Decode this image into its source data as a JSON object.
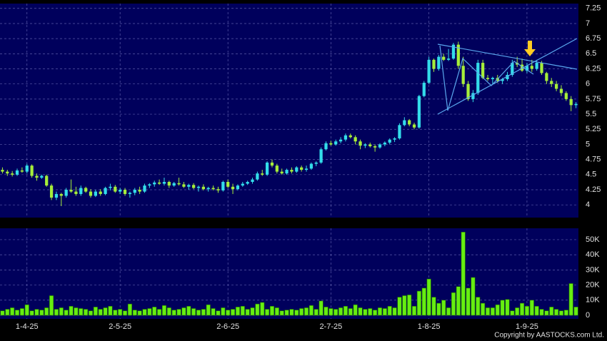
{
  "chart_data": [
    {
      "type": "candlestick",
      "up_color": "#33dcea",
      "down_color": "#a6ee3a",
      "grid": true,
      "xlim": [
        -0.5,
        117.5
      ],
      "xticks": [
        {
          "value": 5,
          "label": "1-4-25"
        },
        {
          "value": 24,
          "label": "2-5-25"
        },
        {
          "value": 46,
          "label": "2-6-25"
        },
        {
          "value": 67,
          "label": "2-7-25"
        },
        {
          "value": 87,
          "label": "1-8-25"
        },
        {
          "value": 107,
          "label": "1-9-25"
        }
      ],
      "ylim": [
        3.79,
        7.33
      ],
      "yticks": [
        4,
        4.25,
        4.5,
        4.75,
        5,
        5.25,
        5.5,
        5.75,
        6,
        6.25,
        6.5,
        6.75,
        7,
        7.25
      ],
      "ohlc": [
        [
          4.58,
          4.62,
          4.52,
          4.55
        ],
        [
          4.55,
          4.58,
          4.48,
          4.52
        ],
        [
          4.52,
          4.56,
          4.47,
          4.5
        ],
        [
          4.5,
          4.6,
          4.48,
          4.57
        ],
        [
          4.57,
          4.62,
          4.53,
          4.55
        ],
        [
          4.55,
          4.68,
          4.52,
          4.65
        ],
        [
          4.65,
          4.67,
          4.45,
          4.48
        ],
        [
          4.48,
          4.52,
          4.4,
          4.45
        ],
        [
          4.45,
          4.5,
          4.43,
          4.48
        ],
        [
          4.48,
          4.5,
          4.3,
          4.32
        ],
        [
          4.32,
          4.35,
          4.08,
          4.12
        ],
        [
          4.12,
          4.22,
          4.08,
          4.18
        ],
        [
          4.18,
          4.2,
          3.98,
          4.15
        ],
        [
          4.15,
          4.28,
          4.12,
          4.25
        ],
        [
          4.25,
          4.42,
          4.2,
          4.22
        ],
        [
          4.22,
          4.3,
          4.15,
          4.18
        ],
        [
          4.18,
          4.32,
          4.15,
          4.28
        ],
        [
          4.28,
          4.3,
          4.2,
          4.22
        ],
        [
          4.22,
          4.26,
          4.12,
          4.15
        ],
        [
          4.15,
          4.25,
          4.13,
          4.22
        ],
        [
          4.22,
          4.26,
          4.15,
          4.18
        ],
        [
          4.18,
          4.3,
          4.16,
          4.28
        ],
        [
          4.28,
          4.35,
          4.24,
          4.3
        ],
        [
          4.3,
          4.33,
          4.2,
          4.22
        ],
        [
          4.22,
          4.28,
          4.18,
          4.25
        ],
        [
          4.25,
          4.28,
          4.15,
          4.18
        ],
        [
          4.18,
          4.22,
          4.12,
          4.2
        ],
        [
          4.2,
          4.28,
          4.16,
          4.25
        ],
        [
          4.25,
          4.3,
          4.18,
          4.22
        ],
        [
          4.22,
          4.35,
          4.2,
          4.32
        ],
        [
          4.32,
          4.36,
          4.28,
          4.34
        ],
        [
          4.34,
          4.4,
          4.3,
          4.37
        ],
        [
          4.37,
          4.42,
          4.33,
          4.35
        ],
        [
          4.35,
          4.45,
          4.32,
          4.38
        ],
        [
          4.38,
          4.4,
          4.28,
          4.32
        ],
        [
          4.32,
          4.38,
          4.3,
          4.36
        ],
        [
          4.36,
          4.45,
          4.32,
          4.34
        ],
        [
          4.34,
          4.38,
          4.28,
          4.3
        ],
        [
          4.3,
          4.35,
          4.25,
          4.33
        ],
        [
          4.33,
          4.36,
          4.26,
          4.28
        ],
        [
          4.28,
          4.32,
          4.22,
          4.3
        ],
        [
          4.3,
          4.34,
          4.24,
          4.26
        ],
        [
          4.26,
          4.3,
          4.22,
          4.28
        ],
        [
          4.28,
          4.32,
          4.24,
          4.26
        ],
        [
          4.26,
          4.3,
          4.2,
          4.24
        ],
        [
          4.24,
          4.4,
          4.22,
          4.38
        ],
        [
          4.38,
          4.42,
          4.28,
          4.3
        ],
        [
          4.3,
          4.35,
          4.18,
          4.26
        ],
        [
          4.26,
          4.34,
          4.24,
          4.32
        ],
        [
          4.32,
          4.38,
          4.3,
          4.35
        ],
        [
          4.35,
          4.4,
          4.33,
          4.38
        ],
        [
          4.38,
          4.45,
          4.35,
          4.42
        ],
        [
          4.42,
          4.55,
          4.4,
          4.52
        ],
        [
          4.52,
          4.58,
          4.48,
          4.5
        ],
        [
          4.5,
          4.72,
          4.48,
          4.7
        ],
        [
          4.7,
          4.75,
          4.62,
          4.65
        ],
        [
          4.65,
          4.68,
          4.52,
          4.55
        ],
        [
          4.55,
          4.6,
          4.5,
          4.52
        ],
        [
          4.52,
          4.6,
          4.5,
          4.58
        ],
        [
          4.58,
          4.62,
          4.52,
          4.55
        ],
        [
          4.55,
          4.64,
          4.53,
          4.62
        ],
        [
          4.62,
          4.65,
          4.55,
          4.58
        ],
        [
          4.58,
          4.65,
          4.55,
          4.6
        ],
        [
          4.6,
          4.7,
          4.58,
          4.68
        ],
        [
          4.68,
          4.72,
          4.64,
          4.7
        ],
        [
          4.7,
          4.95,
          4.68,
          4.92
        ],
        [
          4.92,
          5.05,
          4.9,
          5.02
        ],
        [
          5.02,
          5.06,
          4.98,
          5.0
        ],
        [
          5.0,
          5.08,
          4.98,
          5.05
        ],
        [
          5.05,
          5.12,
          5.02,
          5.08
        ],
        [
          5.08,
          5.18,
          5.05,
          5.15
        ],
        [
          5.15,
          5.18,
          5.1,
          5.12
        ],
        [
          5.12,
          5.15,
          5.0,
          5.05
        ],
        [
          5.05,
          5.08,
          4.92,
          4.98
        ],
        [
          4.98,
          5.02,
          4.94,
          5.0
        ],
        [
          5.0,
          5.03,
          4.95,
          4.97
        ],
        [
          4.97,
          5.0,
          4.88,
          4.95
        ],
        [
          4.95,
          5.02,
          4.93,
          5.0
        ],
        [
          5.0,
          5.05,
          4.97,
          5.03
        ],
        [
          5.03,
          5.1,
          5.0,
          5.08
        ],
        [
          5.08,
          5.12,
          5.04,
          5.1
        ],
        [
          5.1,
          5.35,
          5.08,
          5.32
        ],
        [
          5.32,
          5.45,
          5.3,
          5.4
        ],
        [
          5.4,
          5.42,
          5.3,
          5.33
        ],
        [
          5.33,
          5.36,
          5.25,
          5.28
        ],
        [
          5.28,
          5.82,
          5.26,
          5.8
        ],
        [
          5.8,
          6.05,
          5.78,
          6.02
        ],
        [
          6.02,
          6.45,
          6.0,
          6.4
        ],
        [
          6.4,
          6.42,
          6.2,
          6.25
        ],
        [
          6.25,
          6.48,
          6.22,
          6.45
        ],
        [
          6.45,
          6.5,
          6.38,
          6.4
        ],
        [
          6.4,
          6.58,
          6.38,
          6.42
        ],
        [
          6.42,
          6.68,
          6.4,
          6.65
        ],
        [
          6.65,
          6.7,
          6.25,
          6.3
        ],
        [
          6.3,
          6.45,
          5.95,
          6.0
        ],
        [
          6.0,
          6.05,
          5.72,
          5.75
        ],
        [
          5.75,
          5.9,
          5.7,
          5.85
        ],
        [
          5.85,
          6.4,
          5.82,
          6.35
        ],
        [
          6.35,
          6.4,
          6.08,
          6.1
        ],
        [
          6.1,
          6.15,
          6.05,
          6.08
        ],
        [
          6.08,
          6.12,
          6.0,
          6.1
        ],
        [
          6.1,
          6.15,
          6.02,
          6.05
        ],
        [
          6.05,
          6.1,
          6.0,
          6.08
        ],
        [
          6.08,
          6.2,
          6.05,
          6.15
        ],
        [
          6.15,
          6.4,
          6.12,
          6.35
        ],
        [
          6.35,
          6.45,
          6.28,
          6.32
        ],
        [
          6.32,
          6.42,
          6.2,
          6.22
        ],
        [
          6.22,
          6.35,
          6.18,
          6.3
        ],
        [
          6.3,
          6.4,
          6.2,
          6.25
        ],
        [
          6.25,
          6.4,
          6.22,
          6.35
        ],
        [
          6.35,
          6.38,
          6.15,
          6.18
        ],
        [
          6.18,
          6.2,
          6.0,
          6.05
        ],
        [
          6.05,
          6.1,
          5.95,
          6.0
        ],
        [
          6.0,
          6.05,
          5.88,
          5.92
        ],
        [
          5.92,
          5.98,
          5.8,
          5.85
        ],
        [
          5.85,
          5.88,
          5.72,
          5.75
        ],
        [
          5.75,
          5.8,
          5.55,
          5.65
        ],
        [
          5.65,
          5.7,
          5.6,
          5.67
        ]
      ]
    },
    {
      "type": "bar",
      "color": "#66ee11",
      "grid": true,
      "xlim": [
        -0.5,
        117.5
      ],
      "xticks": [
        {
          "value": 5,
          "label": "1-4-25"
        },
        {
          "value": 24,
          "label": "2-5-25"
        },
        {
          "value": 46,
          "label": "2-6-25"
        },
        {
          "value": 67,
          "label": "2-7-25"
        },
        {
          "value": 87,
          "label": "1-8-25"
        },
        {
          "value": 107,
          "label": "1-9-25"
        }
      ],
      "ylim": [
        0,
        57500
      ],
      "yticks": [
        0,
        {
          "value": 10000,
          "label": "10K"
        },
        {
          "value": 20000,
          "label": "20K"
        },
        {
          "value": 30000,
          "label": "30K"
        },
        {
          "value": 40000,
          "label": "40K"
        },
        {
          "value": 50000,
          "label": "50K"
        }
      ],
      "values": [
        3000,
        4000,
        5000,
        3500,
        4500,
        7000,
        3000,
        4000,
        3500,
        5000,
        13000,
        4000,
        5000,
        3500,
        6000,
        5000,
        4500,
        4000,
        3000,
        5500,
        4000,
        5000,
        6000,
        3500,
        4000,
        3000,
        7500,
        3500,
        3000,
        4000,
        4500,
        5500,
        4000,
        6500,
        5000,
        3500,
        4000,
        5000,
        6000,
        4500,
        3500,
        4000,
        7000,
        4500,
        3000,
        5000,
        3500,
        4000,
        5500,
        6000,
        4000,
        5000,
        7500,
        8500,
        4000,
        6000,
        5000,
        3000,
        3500,
        4000,
        3500,
        4500,
        5000,
        6500,
        4000,
        9500,
        5500,
        4500,
        4000,
        5000,
        6000,
        4500,
        7000,
        5000,
        4000,
        4500,
        3500,
        5000,
        4500,
        6000,
        5000,
        12000,
        13000,
        13500,
        6000,
        16000,
        18000,
        24000,
        12000,
        8000,
        10000,
        5000,
        15000,
        19000,
        55000,
        18000,
        25000,
        12000,
        8000,
        5000,
        5000,
        7000,
        10000,
        10500,
        3000,
        5000,
        8000,
        6000,
        10000,
        6000,
        4000,
        3000,
        5500,
        4000,
        3000,
        3500,
        21000,
        5500
      ],
      "footnote": "Copyright by AASTOCKS.com Ltd."
    }
  ]
}
